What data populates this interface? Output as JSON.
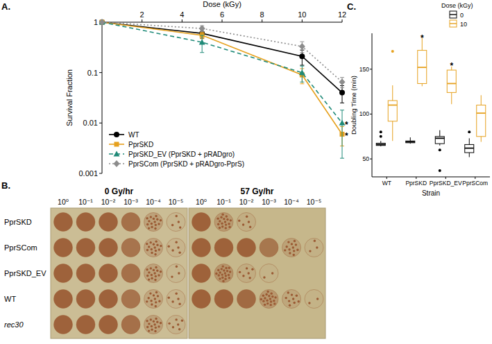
{
  "panel_labels": [
    "A.",
    "B.",
    "C."
  ],
  "chart_data": [
    {
      "type": "line",
      "x_label": "Dose (kGy)",
      "y_label": "Survival Fraction",
      "log": "y",
      "x": [
        0,
        5,
        10,
        12
      ],
      "xlim": [
        0,
        12
      ],
      "xticks": [
        2,
        4,
        6,
        8,
        10,
        12
      ],
      "ylim": [
        0.001,
        1
      ],
      "yticks": [
        0.001,
        0.01,
        0.1,
        1
      ],
      "grid": false,
      "legend": "bottom-left",
      "series": [
        {
          "name": "WT",
          "color": "#000000",
          "marker": "circle",
          "line_style": "solid",
          "values": [
            1,
            0.6,
            0.21,
            0.04
          ],
          "errors": [
            0,
            0.12,
            0.07,
            0.015
          ]
        },
        {
          "name": "PprSKD",
          "color": "#E6A11E",
          "marker": "square",
          "line_style": "solid",
          "values": [
            1,
            0.55,
            0.09,
            0.006
          ],
          "errors": [
            0,
            0.08,
            0.03,
            0.0025
          ]
        },
        {
          "name": "PprSKD_EV (PprSKD + pRADgro)",
          "color": "#1F8A78",
          "marker": "triangle",
          "line_style": "dashed",
          "values": [
            1,
            0.4,
            0.1,
            0.01
          ],
          "errors": [
            0,
            0.15,
            0.035,
            0.008
          ]
        },
        {
          "name": "PprSCom (PprSKD + pRADgro-PprS)",
          "color": "#8C8C8C",
          "marker": "diamond",
          "line_style": "dotted",
          "values": [
            1,
            0.75,
            0.33,
            0.065
          ],
          "errors": [
            0,
            0.1,
            0.08,
            0.015
          ]
        }
      ],
      "annotations": [
        {
          "text": "*",
          "x": 12,
          "y": 0.006
        },
        {
          "text": "*",
          "x": 12,
          "y": 0.01
        }
      ]
    },
    {
      "type": "box",
      "x_label": "Strain",
      "y_label": "Doubling Time (min)",
      "categories": [
        "WT",
        "PprSKD",
        "PprSKD_EV",
        "PprSCom"
      ],
      "ylim": [
        30,
        190
      ],
      "yticks": [
        50,
        100,
        150
      ],
      "grid": false,
      "legend": "top-right",
      "legend_title": "Dose (kGy)",
      "series": [
        {
          "name": "0",
          "color": "#000000",
          "boxes": [
            {
              "min": 64,
              "q1": 65,
              "median": 66,
              "q3": 67.5,
              "max": 70,
              "outliers": [
                75,
                80
              ]
            },
            {
              "min": 67,
              "q1": 68,
              "median": 69,
              "q3": 70,
              "max": 74,
              "outliers": []
            },
            {
              "min": 65,
              "q1": 67,
              "median": 73,
              "q3": 75,
              "max": 82,
              "outliers": [
                60,
                37
              ]
            },
            {
              "min": 52,
              "q1": 57,
              "median": 62,
              "q3": 66,
              "max": 73,
              "outliers": [
                80
              ]
            }
          ]
        },
        {
          "name": "10",
          "color": "#E6A11E",
          "boxes": [
            {
              "min": 70,
              "q1": 92,
              "median": 110,
              "q3": 115,
              "max": 132,
              "outliers": [
                170
              ]
            },
            {
              "min": 131,
              "q1": 134,
              "median": 152,
              "q3": 171,
              "max": 185,
              "outliers": []
            },
            {
              "min": 111,
              "q1": 124,
              "median": 134,
              "q3": 149,
              "max": 153,
              "outliers": []
            },
            {
              "min": 69,
              "q1": 75,
              "median": 101,
              "q3": 110,
              "max": 121,
              "outliers": []
            }
          ]
        }
      ],
      "annotations": [
        {
          "text": "*",
          "x": "PprSKD",
          "series": "10",
          "y": 187
        },
        {
          "text": "*",
          "x": "PprSKD_EV",
          "series": "10",
          "y": 156
        }
      ]
    }
  ],
  "spot_assay": {
    "conditions": [
      "0 Gy/hr",
      "57 Gy/hr"
    ],
    "dilutions": [
      "10⁰",
      "10⁻¹",
      "10⁻²",
      "10⁻³",
      "10⁻⁴",
      "10⁻⁵"
    ],
    "strains": [
      {
        "name": "PprSKD",
        "style": "normal"
      },
      {
        "name": "PprSCom",
        "style": "normal"
      },
      {
        "name": "PprSKD_EV",
        "style": "normal"
      },
      {
        "name": "WT",
        "style": "normal"
      },
      {
        "name": "rec30",
        "style": "italic"
      }
    ],
    "spot_density": [
      [
        [
          1,
          1,
          1,
          0.85,
          0.5,
          0.12
        ],
        [
          1,
          1,
          1,
          0.8,
          0.45,
          0.15
        ],
        [
          1,
          1,
          1,
          0.85,
          0.5,
          0.1
        ],
        [
          1,
          1,
          1,
          0.8,
          0.4,
          0.15
        ],
        [
          1,
          1,
          1,
          0.85,
          0.5,
          0.2
        ]
      ],
      [
        [
          1,
          0.55,
          0.15,
          0,
          0,
          0
        ],
        [
          1,
          1,
          1,
          0.75,
          0.4,
          0.1
        ],
        [
          1,
          0.65,
          0.2,
          0.05,
          0,
          0
        ],
        [
          1,
          1,
          0.9,
          0.6,
          0.3,
          0.08
        ],
        [
          0,
          0,
          0,
          0,
          0,
          0
        ]
      ]
    ]
  }
}
